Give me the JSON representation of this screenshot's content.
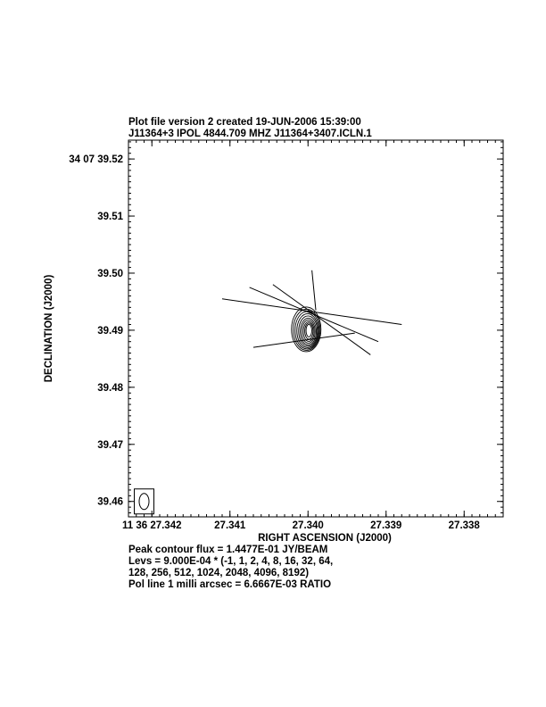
{
  "header": {
    "line1": "Plot file version 2  created 19-JUN-2006 15:39:00",
    "line2": "J11364+3  IPOL  4844.709 MHZ  J11364+3407.ICLN.1"
  },
  "footer": {
    "line1": "Peak contour flux =  1.4477E-01 JY/BEAM",
    "line2": "Levs = 9.000E-04 * (-1, 1, 2, 4, 8, 16, 32, 64,",
    "line3": "128, 256, 512, 1024, 2048, 4096, 8192)",
    "line4": "Pol line 1 milli arcsec =  6.6667E-03 RATIO"
  },
  "chart_data": {
    "type": "contour",
    "xlabel": "RIGHT ASCENSION (J2000)",
    "ylabel": "DECLINATION (J2000)",
    "x_tick_labels": [
      "11 36 27.342",
      "27.341",
      "27.340",
      "27.339",
      "27.338"
    ],
    "x_tick_values": [
      27.342,
      27.341,
      27.34,
      27.339,
      27.338
    ],
    "y_tick_labels": [
      "34 07 39.52",
      "39.51",
      "39.50",
      "39.49",
      "39.48",
      "39.47",
      "39.46"
    ],
    "y_tick_values": [
      39.52,
      39.51,
      39.5,
      39.49,
      39.48,
      39.47,
      39.46
    ],
    "xlim": [
      27.3423,
      27.3375
    ],
    "ylim": [
      39.4573,
      39.5233
    ],
    "x_decreasing": true,
    "contour_center": [
      27.34,
      39.49
    ],
    "contour_levels_mult": [
      -1,
      1,
      2,
      4,
      8,
      16,
      32,
      64,
      128,
      256,
      512,
      1024,
      2048,
      4096,
      8192
    ],
    "pol_vectors": [
      {
        "x1": 27.3411,
        "y1": 39.4955,
        "x2": 27.3388,
        "y2": 39.491
      },
      {
        "x1": 27.34075,
        "y1": 39.4975,
        "x2": 27.3391,
        "y2": 39.488
      },
      {
        "x1": 27.34045,
        "y1": 39.498,
        "x2": 27.3392,
        "y2": 39.4857
      },
      {
        "x1": 27.33995,
        "y1": 39.5005,
        "x2": 27.3399,
        "y2": 39.4935
      },
      {
        "x1": 27.3407,
        "y1": 39.487,
        "x2": 27.3394,
        "y2": 39.4895
      }
    ],
    "beam": {
      "x": 27.3421,
      "y": 39.46
    }
  }
}
